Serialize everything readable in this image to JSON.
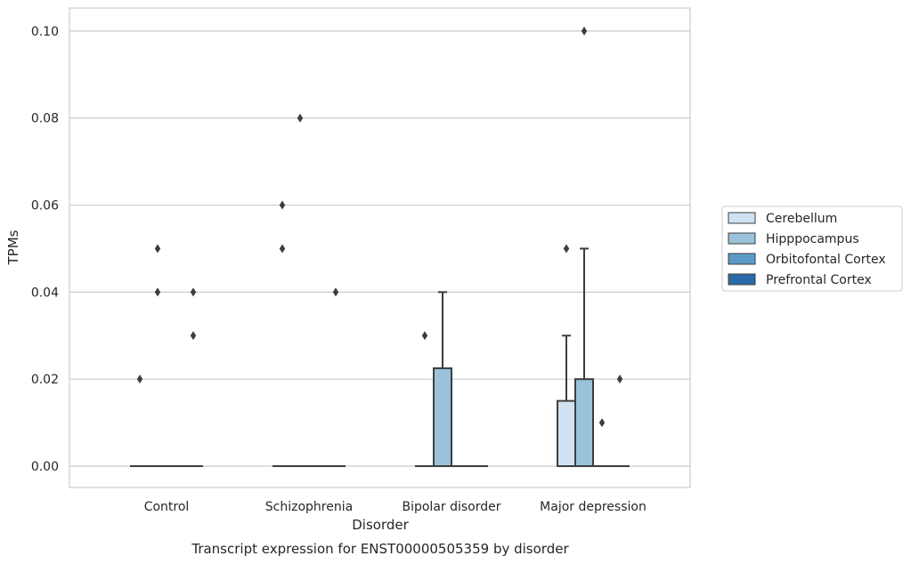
{
  "chart_data": {
    "type": "box",
    "title": "",
    "caption": "Transcript expression for ENST00000505359 by disorder",
    "xlabel": "Disorder",
    "ylabel": "TPMs",
    "ylim": [
      -0.005,
      0.105
    ],
    "yticks": [
      0.0,
      0.02,
      0.04,
      0.06,
      0.08,
      0.1
    ],
    "ytick_labels": [
      "0.00",
      "0.02",
      "0.04",
      "0.06",
      "0.08",
      "0.10"
    ],
    "grid": "horizontal",
    "legend_position": "right",
    "categories": [
      "Control",
      "Schizophrenia",
      "Bipolar disorder",
      "Major depression"
    ],
    "series": [
      {
        "name": "Cerebellum",
        "color": "#d0e1f2",
        "boxes": [
          {
            "q1": 0.0,
            "median": 0.0,
            "q3": 0.0,
            "whisker_low": 0.0,
            "whisker_high": 0.0,
            "outliers": [
              0.02
            ]
          },
          {
            "q1": 0.0,
            "median": 0.0,
            "q3": 0.0,
            "whisker_low": 0.0,
            "whisker_high": 0.0,
            "outliers": [
              0.05,
              0.06
            ]
          },
          {
            "q1": 0.0,
            "median": 0.0,
            "q3": 0.0,
            "whisker_low": 0.0,
            "whisker_high": 0.0,
            "outliers": [
              0.03
            ]
          },
          {
            "q1": 0.0,
            "median": 0.0,
            "q3": 0.015,
            "whisker_low": 0.0,
            "whisker_high": 0.03,
            "outliers": [
              0.05
            ]
          }
        ]
      },
      {
        "name": "Hipppocampus",
        "color": "#9ac2da",
        "boxes": [
          {
            "q1": 0.0,
            "median": 0.0,
            "q3": 0.0,
            "whisker_low": 0.0,
            "whisker_high": 0.0,
            "outliers": [
              0.04,
              0.05
            ]
          },
          {
            "q1": 0.0,
            "median": 0.0,
            "q3": 0.0,
            "whisker_low": 0.0,
            "whisker_high": 0.0,
            "outliers": [
              0.08
            ]
          },
          {
            "q1": 0.0,
            "median": 0.0,
            "q3": 0.0225,
            "whisker_low": 0.0,
            "whisker_high": 0.04,
            "outliers": []
          },
          {
            "q1": 0.0,
            "median": 0.0,
            "q3": 0.02,
            "whisker_low": 0.0,
            "whisker_high": 0.05,
            "outliers": [
              0.1
            ]
          }
        ]
      },
      {
        "name": "Orbitofontal Cortex",
        "color": "#5a9cc7",
        "boxes": [
          {
            "q1": 0.0,
            "median": 0.0,
            "q3": 0.0,
            "whisker_low": 0.0,
            "whisker_high": 0.0,
            "outliers": []
          },
          {
            "q1": 0.0,
            "median": 0.0,
            "q3": 0.0,
            "whisker_low": 0.0,
            "whisker_high": 0.0,
            "outliers": []
          },
          {
            "q1": 0.0,
            "median": 0.0,
            "q3": 0.0,
            "whisker_low": 0.0,
            "whisker_high": 0.0,
            "outliers": []
          },
          {
            "q1": 0.0,
            "median": 0.0,
            "q3": 0.0,
            "whisker_low": 0.0,
            "whisker_high": 0.0,
            "outliers": [
              0.01
            ]
          }
        ]
      },
      {
        "name": "Prefrontal Cortex",
        "color": "#2a6aa8",
        "boxes": [
          {
            "q1": 0.0,
            "median": 0.0,
            "q3": 0.0,
            "whisker_low": 0.0,
            "whisker_high": 0.0,
            "outliers": [
              0.03,
              0.04
            ]
          },
          {
            "q1": 0.0,
            "median": 0.0,
            "q3": 0.0,
            "whisker_low": 0.0,
            "whisker_high": 0.0,
            "outliers": [
              0.04
            ]
          },
          {
            "q1": 0.0,
            "median": 0.0,
            "q3": 0.0,
            "whisker_low": 0.0,
            "whisker_high": 0.0,
            "outliers": []
          },
          {
            "q1": 0.0,
            "median": 0.0,
            "q3": 0.0,
            "whisker_low": 0.0,
            "whisker_high": 0.0,
            "outliers": [
              0.02
            ]
          }
        ]
      }
    ],
    "colors": {
      "grid": "#cccccc",
      "frame": "#cccccc",
      "line": "#3d3d3d",
      "legend_border": "#cccccc"
    }
  }
}
